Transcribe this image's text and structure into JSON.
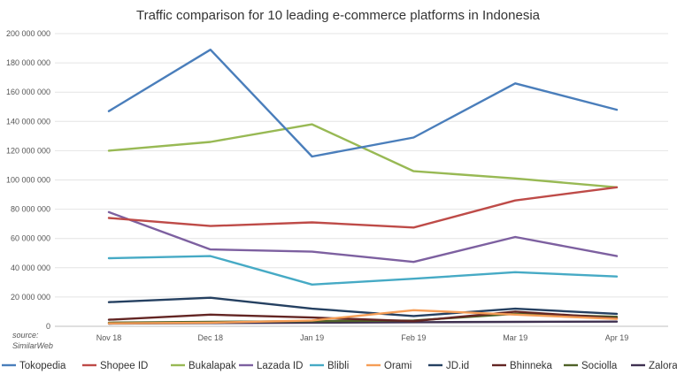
{
  "chart_data": {
    "type": "line",
    "title": "Traffic comparison for 10 leading e-commerce platforms in Indonesia",
    "xlabel": "",
    "ylabel": "",
    "ylim": [
      0,
      200000000
    ],
    "ytick_step": 20000000,
    "yticks": [
      "0",
      "20 000 000",
      "40 000 000",
      "60 000 000",
      "80 000 000",
      "100 000 000",
      "120 000 000",
      "140 000 000",
      "160 000 000",
      "180 000 000",
      "200 000 000"
    ],
    "categories": [
      "Nov 18",
      "Dec 18",
      "Jan 19",
      "Feb 19",
      "Mar 19",
      "Apr 19"
    ],
    "grid": true,
    "legend_position": "bottom",
    "source_line1": "source:",
    "source_line2": "SimilarWeb",
    "series": [
      {
        "name": "Tokopedia",
        "color": "#4a7ebb",
        "values": [
          147000000,
          189000000,
          116000000,
          129000000,
          166000000,
          148000000
        ]
      },
      {
        "name": "Shopee ID",
        "color": "#be4b48",
        "values": [
          74000000,
          68500000,
          71000000,
          67500000,
          86000000,
          95000000
        ]
      },
      {
        "name": "Bukalapak",
        "color": "#98b954",
        "values": [
          120000000,
          126000000,
          138000000,
          106000000,
          101000000,
          95000000
        ]
      },
      {
        "name": "Lazada ID",
        "color": "#7d60a0",
        "values": [
          78000000,
          52500000,
          51000000,
          44000000,
          61000000,
          48000000
        ]
      },
      {
        "name": "Blibli",
        "color": "#46aac5",
        "values": [
          46500000,
          48000000,
          28500000,
          32500000,
          37000000,
          34000000
        ]
      },
      {
        "name": "Orami",
        "color": "#f59d56",
        "values": [
          2000000,
          2500000,
          4000000,
          11000000,
          8000000,
          5000000
        ]
      },
      {
        "name": "JD.id",
        "color": "#254061",
        "values": [
          16500000,
          19500000,
          12000000,
          7000000,
          12000000,
          8500000
        ]
      },
      {
        "name": "Bhinneka",
        "color": "#632523",
        "values": [
          4500000,
          8000000,
          6000000,
          3500000,
          10000000,
          5500000
        ]
      },
      {
        "name": "Sociolla",
        "color": "#4f6228",
        "values": [
          2500000,
          3000000,
          3500000,
          4000000,
          8500000,
          6500000
        ]
      },
      {
        "name": "Zalora ID",
        "color": "#3f3151",
        "values": [
          1800000,
          2200000,
          2500000,
          2800000,
          3000000,
          3200000
        ]
      }
    ]
  }
}
